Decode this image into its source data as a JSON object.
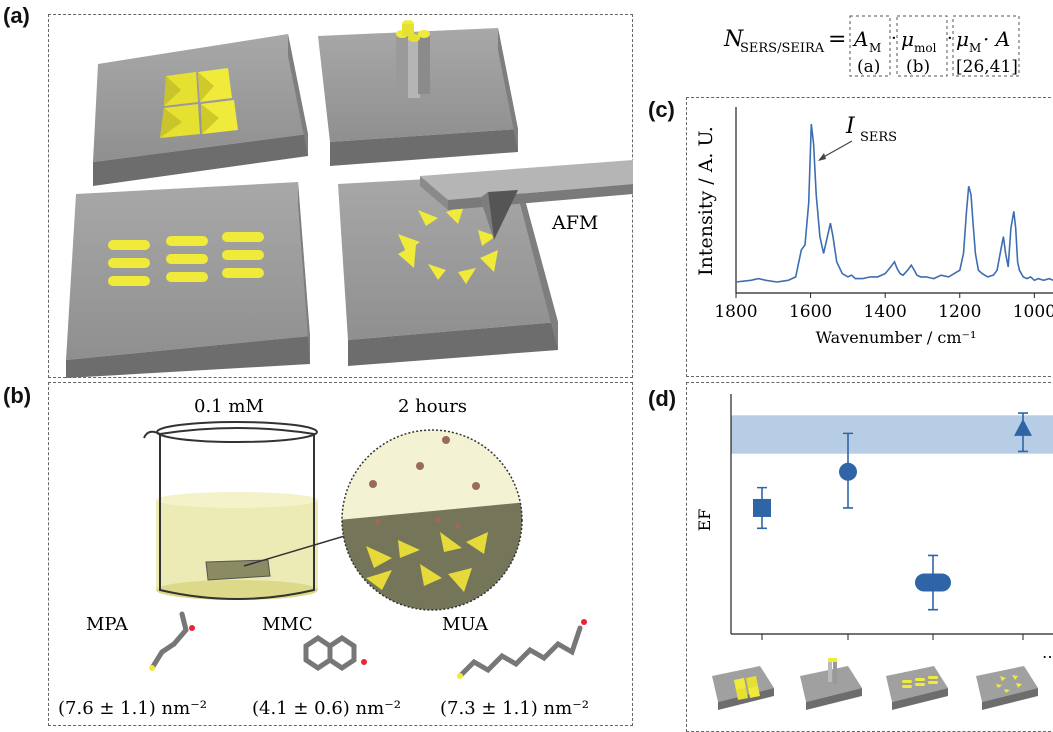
{
  "panels": {
    "a": {
      "letter": "(a)",
      "afm_label": "AFM"
    },
    "b": {
      "letter": "(b)",
      "concentration": "0.1 mM",
      "duration": "2 hours",
      "molecules": [
        {
          "name": "MPA",
          "density": "(7.6 ± 1.1) nm⁻²"
        },
        {
          "name": "MMC",
          "density": "(4.1 ± 0.6) nm⁻²"
        },
        {
          "name": "MUA",
          "density": "(7.3 ± 1.1) nm⁻²"
        }
      ]
    },
    "c": {
      "letter": "(c)"
    },
    "d": {
      "letter": "(d)"
    }
  },
  "equation": {
    "lhs": "N",
    "lhs_sub": "SERS/SEIRA",
    "eq": "=",
    "t1": "A",
    "t1_sub": "M",
    "t2": "μ",
    "t2_sub": "mol",
    "t3": "μ",
    "t3_sub": "M",
    "t3_tail": "· A",
    "dot": "·",
    "ref1": "(a)",
    "ref2": "(b)",
    "ref3": "[26,41]"
  },
  "chart_data": [
    {
      "type": "line",
      "ylabel": "Intensity / A. U.",
      "xlabel": "Wavenumber / cm⁻¹",
      "annotation": {
        "text": "I",
        "sub": "SERS"
      },
      "xlim": [
        1800,
        950
      ],
      "xticks": [
        1800,
        1600,
        1400,
        1200,
        1000
      ],
      "x": [
        1800,
        1760,
        1740,
        1720,
        1690,
        1660,
        1640,
        1625,
        1615,
        1605,
        1598,
        1592,
        1585,
        1575,
        1565,
        1555,
        1547,
        1540,
        1530,
        1515,
        1500,
        1490,
        1480,
        1460,
        1440,
        1420,
        1400,
        1385,
        1375,
        1368,
        1360,
        1352,
        1340,
        1330,
        1322,
        1315,
        1305,
        1290,
        1270,
        1250,
        1230,
        1215,
        1200,
        1190,
        1182,
        1176,
        1170,
        1165,
        1158,
        1150,
        1140,
        1125,
        1110,
        1100,
        1090,
        1083,
        1077,
        1070,
        1063,
        1055,
        1050,
        1045,
        1040,
        1030,
        1020,
        1010,
        1000,
        990,
        975,
        960,
        950
      ],
      "y": [
        0.03,
        0.04,
        0.05,
        0.04,
        0.03,
        0.04,
        0.06,
        0.22,
        0.25,
        0.5,
        0.97,
        0.85,
        0.55,
        0.3,
        0.2,
        0.3,
        0.38,
        0.3,
        0.15,
        0.08,
        0.06,
        0.07,
        0.05,
        0.05,
        0.06,
        0.06,
        0.08,
        0.12,
        0.15,
        0.11,
        0.08,
        0.07,
        0.1,
        0.13,
        0.1,
        0.07,
        0.06,
        0.06,
        0.05,
        0.07,
        0.06,
        0.08,
        0.1,
        0.2,
        0.45,
        0.6,
        0.55,
        0.4,
        0.2,
        0.1,
        0.08,
        0.06,
        0.07,
        0.1,
        0.22,
        0.3,
        0.2,
        0.12,
        0.35,
        0.45,
        0.35,
        0.15,
        0.1,
        0.06,
        0.05,
        0.06,
        0.04,
        0.05,
        0.04,
        0.05,
        0.04
      ],
      "color": "#3d6eb0"
    },
    {
      "type": "scatter",
      "ylabel": "EF",
      "band": {
        "low": 0.78,
        "high": 0.95
      },
      "ylim": [
        0,
        1
      ],
      "color": "#2f65a7",
      "band_color": "#b7cde6",
      "points": [
        {
          "category": "pyramids",
          "marker": "square",
          "y": 0.54,
          "err_low": 0.45,
          "err_high": 0.63
        },
        {
          "category": "nanopillars",
          "marker": "circle",
          "y": 0.7,
          "err_low": 0.54,
          "err_high": 0.87
        },
        {
          "category": "nanorods",
          "marker": "capsule",
          "y": 0.21,
          "err_low": 0.09,
          "err_high": 0.33
        },
        {
          "category": "bowties",
          "marker": "triangle",
          "y": 0.89,
          "err_low": 0.79,
          "err_high": 0.96
        }
      ],
      "trailing_label": "…"
    }
  ]
}
